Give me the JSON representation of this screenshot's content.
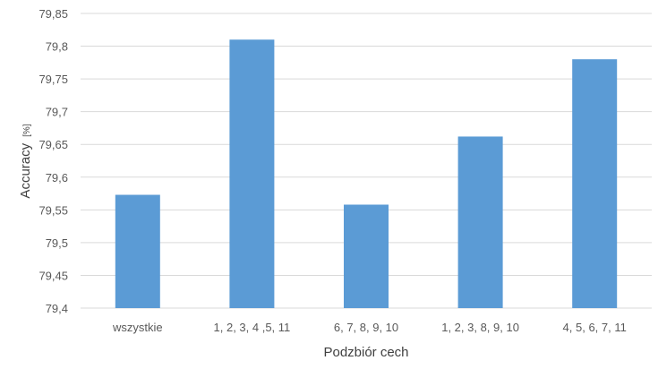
{
  "chart_data": {
    "type": "bar",
    "categories": [
      "wszystkie",
      "1, 2, 3, 4 ,5, 11",
      "6, 7, 8, 9, 10",
      "1, 2, 3, 8, 9, 10",
      "4, 5, 6, 7, 11"
    ],
    "values": [
      79.573,
      79.81,
      79.558,
      79.662,
      79.78
    ],
    "xlabel": "Podzbiór cech",
    "ylabel": "Accuracy",
    "ylabel_unit": "[%]",
    "ylim": [
      79.4,
      79.85
    ],
    "yticks": [
      "79,4",
      "79,45",
      "79,5",
      "79,55",
      "79,6",
      "79,65",
      "79,7",
      "79,75",
      "79,8",
      "79,85"
    ],
    "grid": true,
    "bar_color": "#5b9bd5",
    "grid_color": "#d9d9d9"
  }
}
